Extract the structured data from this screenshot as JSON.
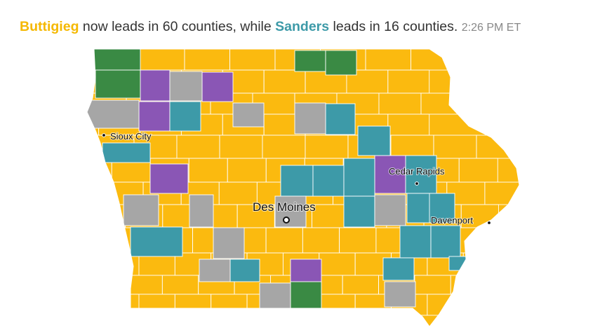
{
  "headline": {
    "candidate_a": "Buttigieg",
    "text_a": " now leads in 60 counties, while ",
    "candidate_b": "Sanders",
    "text_b": " leads in 16 counties. ",
    "timestamp": "2:26 PM ET"
  },
  "colors": {
    "Buttigieg": "#fbba0f",
    "Sanders": "#3d9aa8",
    "Warren": "#8a56b5",
    "Klobuchar": "#3a8a44",
    "Tied": "#a6a6a6",
    "county_border": "#ffffff",
    "text_buttigieg": "#f5b800",
    "text_sanders": "#3d9aa8"
  },
  "counts": {
    "Buttigieg": 60,
    "Sanders": 16
  },
  "cities": {
    "sioux_city": "Sioux City",
    "cedar_rapids": "Cedar Rapids",
    "des_moines": "Des Moines",
    "davenport": "Davenport"
  }
}
